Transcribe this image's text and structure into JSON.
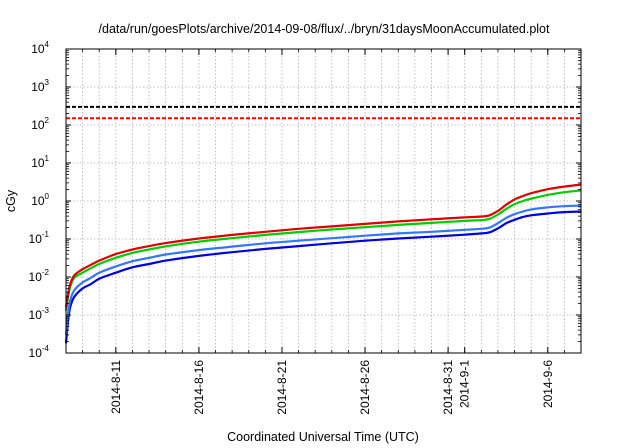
{
  "chart_data": {
    "type": "line",
    "title": "/data/run/goesPlots/archive/2014-09-08/flux/../bryn/31daysMoonAccumulated.plot",
    "xlabel": "Coordinated Universal Time (UTC)",
    "ylabel": "cGy",
    "y_scale": "log",
    "ylim": [
      0.0001,
      10000
    ],
    "xlim": [
      "2014-08-08",
      "2014-09-08"
    ],
    "grid": true,
    "y_ticks": [
      {
        "base": "10",
        "exp": "-4"
      },
      {
        "base": "10",
        "exp": "-3"
      },
      {
        "base": "10",
        "exp": "-2"
      },
      {
        "base": "10",
        "exp": "-1"
      },
      {
        "base": "10",
        "exp": "0"
      },
      {
        "base": "10",
        "exp": "1"
      },
      {
        "base": "10",
        "exp": "2"
      },
      {
        "base": "10",
        "exp": "3"
      },
      {
        "base": "10",
        "exp": "4"
      }
    ],
    "x_ticks": [
      {
        "label": "2014-8-11",
        "date": "2014-08-11"
      },
      {
        "label": "2014-8-16",
        "date": "2014-08-16"
      },
      {
        "label": "2014-8-21",
        "date": "2014-08-21"
      },
      {
        "label": "2014-8-26",
        "date": "2014-08-26"
      },
      {
        "label": "2014-8-31",
        "date": "2014-08-31"
      },
      {
        "label": "2014-9-1",
        "date": "2014-09-01"
      },
      {
        "label": "2014-9-6",
        "date": "2014-09-06"
      }
    ],
    "x_gridlines": [
      "2014-08-09",
      "2014-08-10",
      "2014-08-11",
      "2014-08-12",
      "2014-08-13",
      "2014-08-14",
      "2014-08-15",
      "2014-08-16",
      "2014-08-17",
      "2014-08-18",
      "2014-08-19",
      "2014-08-20",
      "2014-08-21",
      "2014-08-22",
      "2014-08-23",
      "2014-08-24",
      "2014-08-25",
      "2014-08-26",
      "2014-08-27",
      "2014-08-28",
      "2014-08-29",
      "2014-08-30",
      "2014-08-31",
      "2014-09-01",
      "2014-09-02",
      "2014-09-03",
      "2014-09-04",
      "2014-09-05",
      "2014-09-06",
      "2014-09-07"
    ],
    "reference_lines": [
      {
        "y": 300,
        "color": "#000000",
        "dash": "dashed"
      },
      {
        "y": 150,
        "color": "#ff0000",
        "dash": "dashed"
      }
    ],
    "series": [
      {
        "color": "#0000dd",
        "x": [
          "2014-08-08T00:00",
          "2014-08-08T03:00",
          "2014-08-08T06:00",
          "2014-08-08T12:00",
          "2014-08-09T00:00",
          "2014-08-09T12:00",
          "2014-08-10T00:00",
          "2014-08-11T00:00",
          "2014-08-12T00:00",
          "2014-08-13T00:00",
          "2014-08-14T00:00",
          "2014-08-16T00:00",
          "2014-08-18T00:00",
          "2014-08-20T00:00",
          "2014-08-22T00:00",
          "2014-08-24T00:00",
          "2014-08-26T00:00",
          "2014-08-28T00:00",
          "2014-08-30T00:00",
          "2014-09-01T00:00",
          "2014-09-02T00:00",
          "2014-09-02T12:00",
          "2014-09-03T00:00",
          "2014-09-03T12:00",
          "2014-09-04T00:00",
          "2014-09-04T12:00",
          "2014-09-05T00:00",
          "2014-09-06T00:00",
          "2014-09-07T00:00",
          "2014-09-08T00:00"
        ],
        "y": [
          0.00018,
          0.0007,
          0.0016,
          0.003,
          0.005,
          0.0065,
          0.009,
          0.013,
          0.018,
          0.022,
          0.027,
          0.036,
          0.045,
          0.055,
          0.065,
          0.077,
          0.09,
          0.103,
          0.115,
          0.13,
          0.14,
          0.15,
          0.19,
          0.26,
          0.32,
          0.38,
          0.42,
          0.47,
          0.51,
          0.53
        ]
      },
      {
        "color": "#3377ff",
        "x": [
          "2014-08-08T00:00",
          "2014-08-08T03:00",
          "2014-08-08T06:00",
          "2014-08-08T12:00",
          "2014-08-09T00:00",
          "2014-08-09T12:00",
          "2014-08-10T00:00",
          "2014-08-11T00:00",
          "2014-08-12T00:00",
          "2014-08-13T00:00",
          "2014-08-14T00:00",
          "2014-08-16T00:00",
          "2014-08-18T00:00",
          "2014-08-20T00:00",
          "2014-08-22T00:00",
          "2014-08-24T00:00",
          "2014-08-26T00:00",
          "2014-08-28T00:00",
          "2014-08-30T00:00",
          "2014-09-01T00:00",
          "2014-09-02T00:00",
          "2014-09-02T12:00",
          "2014-09-03T00:00",
          "2014-09-03T12:00",
          "2014-09-04T00:00",
          "2014-09-04T12:00",
          "2014-09-05T00:00",
          "2014-09-06T00:00",
          "2014-09-07T00:00",
          "2014-09-08T00:00"
        ],
        "y": [
          0.0003,
          0.0011,
          0.0024,
          0.0045,
          0.0072,
          0.0095,
          0.013,
          0.019,
          0.026,
          0.032,
          0.039,
          0.051,
          0.063,
          0.077,
          0.09,
          0.105,
          0.122,
          0.14,
          0.155,
          0.175,
          0.185,
          0.2,
          0.26,
          0.36,
          0.45,
          0.53,
          0.6,
          0.68,
          0.73,
          0.76
        ]
      },
      {
        "color": "#00cc00",
        "x": [
          "2014-08-08T00:00",
          "2014-08-08T03:00",
          "2014-08-08T06:00",
          "2014-08-08T12:00",
          "2014-08-09T00:00",
          "2014-08-09T12:00",
          "2014-08-10T00:00",
          "2014-08-11T00:00",
          "2014-08-12T00:00",
          "2014-08-13T00:00",
          "2014-08-14T00:00",
          "2014-08-16T00:00",
          "2014-08-18T00:00",
          "2014-08-20T00:00",
          "2014-08-22T00:00",
          "2014-08-24T00:00",
          "2014-08-26T00:00",
          "2014-08-28T00:00",
          "2014-08-30T00:00",
          "2014-09-01T00:00",
          "2014-09-02T00:00",
          "2014-09-02T12:00",
          "2014-09-03T00:00",
          "2014-09-03T12:00",
          "2014-09-04T00:00",
          "2014-09-04T12:00",
          "2014-09-05T00:00",
          "2014-09-06T00:00",
          "2014-09-07T00:00",
          "2014-09-08T00:00"
        ],
        "y": [
          0.0013,
          0.003,
          0.0055,
          0.0095,
          0.013,
          0.017,
          0.022,
          0.032,
          0.043,
          0.053,
          0.064,
          0.085,
          0.105,
          0.128,
          0.152,
          0.178,
          0.205,
          0.235,
          0.265,
          0.3,
          0.315,
          0.34,
          0.44,
          0.62,
          0.82,
          1.0,
          1.15,
          1.45,
          1.7,
          1.9
        ]
      },
      {
        "color": "#dd0000",
        "x": [
          "2014-08-08T00:00",
          "2014-08-08T03:00",
          "2014-08-08T06:00",
          "2014-08-08T12:00",
          "2014-08-09T00:00",
          "2014-08-09T12:00",
          "2014-08-10T00:00",
          "2014-08-11T00:00",
          "2014-08-12T00:00",
          "2014-08-13T00:00",
          "2014-08-14T00:00",
          "2014-08-16T00:00",
          "2014-08-18T00:00",
          "2014-08-20T00:00",
          "2014-08-22T00:00",
          "2014-08-24T00:00",
          "2014-08-26T00:00",
          "2014-08-28T00:00",
          "2014-08-30T00:00",
          "2014-09-01T00:00",
          "2014-09-02T00:00",
          "2014-09-02T12:00",
          "2014-09-03T00:00",
          "2014-09-03T12:00",
          "2014-09-04T00:00",
          "2014-09-04T12:00",
          "2014-09-05T00:00",
          "2014-09-06T00:00",
          "2014-09-07T00:00",
          "2014-09-08T00:00"
        ],
        "y": [
          0.0016,
          0.0036,
          0.0065,
          0.011,
          0.016,
          0.021,
          0.027,
          0.04,
          0.053,
          0.065,
          0.078,
          0.103,
          0.128,
          0.155,
          0.185,
          0.215,
          0.25,
          0.29,
          0.33,
          0.37,
          0.39,
          0.42,
          0.55,
          0.8,
          1.1,
          1.35,
          1.6,
          2.05,
          2.4,
          2.7
        ]
      }
    ]
  }
}
